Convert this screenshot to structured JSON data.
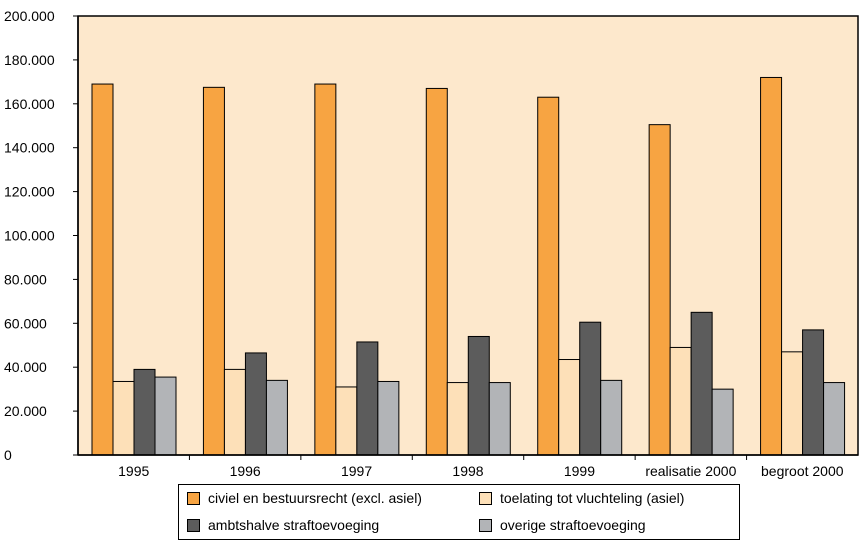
{
  "chart_data": {
    "type": "bar",
    "categories": [
      "1995",
      "1996",
      "1997",
      "1998",
      "1999",
      "realisatie 2000",
      "begroot 2000"
    ],
    "series": [
      {
        "name": "civiel en bestuursrecht (excl. asiel)",
        "color": "#f7a442",
        "values": [
          169000,
          167500,
          169000,
          167000,
          163000,
          150500,
          172000
        ]
      },
      {
        "name": "toelating tot vluchteling (asiel)",
        "color": "#fde0b8",
        "values": [
          33500,
          39000,
          31000,
          33000,
          43500,
          49000,
          47000
        ]
      },
      {
        "name": "ambtshalve straftoevoeging",
        "color": "#5c5c5c",
        "values": [
          39000,
          46500,
          51500,
          54000,
          60500,
          65000,
          57000
        ]
      },
      {
        "name": "overige straftoevoeging",
        "color": "#b2b4b7",
        "values": [
          35500,
          34000,
          33500,
          33000,
          34000,
          30000,
          33000
        ]
      }
    ],
    "ylim": [
      0,
      200000
    ],
    "yticks": [
      0,
      20000,
      40000,
      60000,
      80000,
      100000,
      120000,
      140000,
      160000,
      180000,
      200000
    ],
    "ytick_labels": [
      "0",
      "20.000",
      "40.000",
      "60.000",
      "80.000",
      "100.000",
      "120.000",
      "140.000",
      "160.000",
      "180.000",
      "200.000"
    ],
    "grid": false,
    "legend_position": "bottom",
    "plot_background": "#fde8cc"
  }
}
